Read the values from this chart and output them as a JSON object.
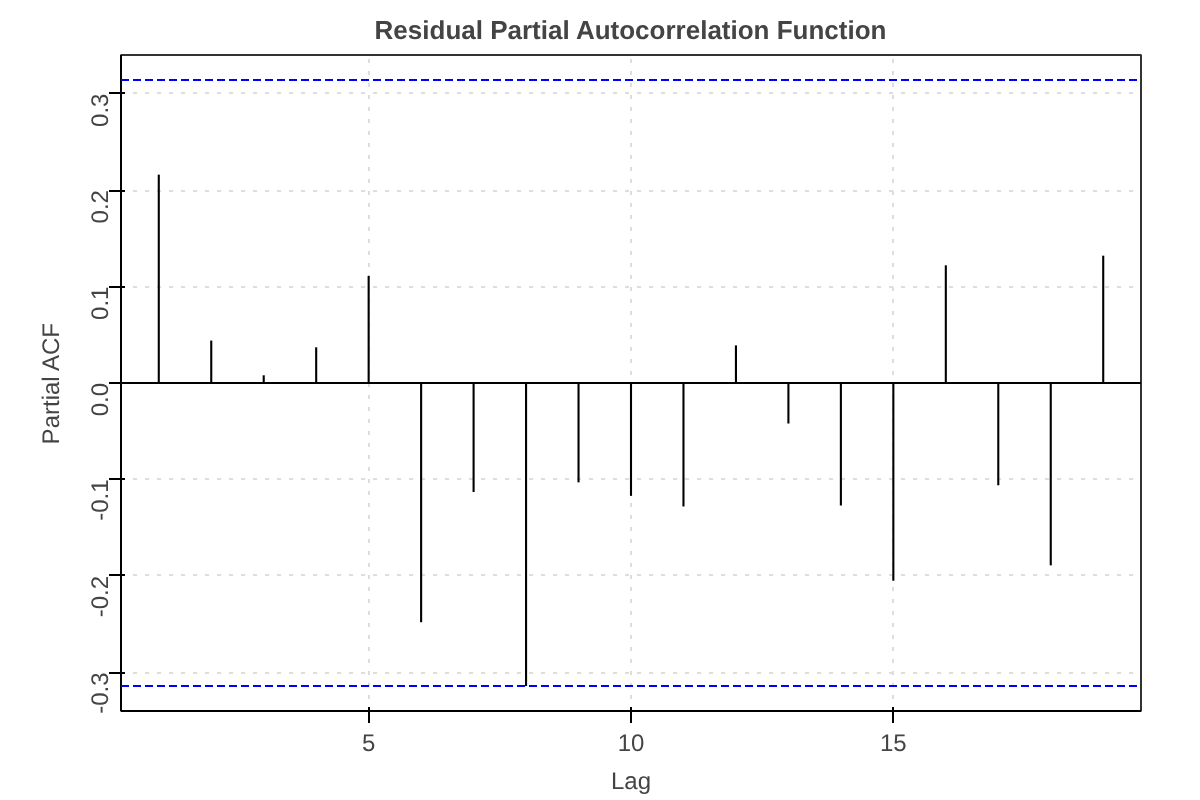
{
  "chart_data": {
    "type": "bar",
    "title": "Residual Partial Autocorrelation Function",
    "xlabel": "Lag",
    "ylabel": "Partial ACF",
    "x": [
      1,
      2,
      3,
      4,
      5,
      6,
      7,
      8,
      9,
      10,
      11,
      12,
      13,
      14,
      15,
      16,
      17,
      18,
      19
    ],
    "series": [
      {
        "color": "#000000",
        "values": [
          0.216,
          0.044,
          0.008,
          0.037,
          0.111,
          -0.248,
          -0.113,
          -0.314,
          -0.103,
          -0.117,
          -0.128,
          0.039,
          -0.042,
          -0.127,
          -0.205,
          0.122,
          -0.106,
          -0.189,
          0.132
        ]
      }
    ],
    "xlim": [
      0.28,
      19.72
    ],
    "xticks": [
      5,
      10,
      15
    ],
    "ylim": [
      -0.34,
      0.34
    ],
    "yticks": [
      -0.3,
      -0.2,
      -0.1,
      {
        "value": 0,
        "label": "0.0"
      },
      0.1,
      0.2,
      0.3
    ],
    "ref_lines": [
      {
        "axis": "y",
        "value": 0.314,
        "color": "#0000ff",
        "line_style": "dashed"
      },
      {
        "axis": "y",
        "value": -0.314,
        "color": "#0000ff",
        "line_style": "dashed"
      },
      {
        "axis": "y",
        "value": 0,
        "color": "#000000",
        "line_style": "solid"
      }
    ],
    "grid": true
  }
}
